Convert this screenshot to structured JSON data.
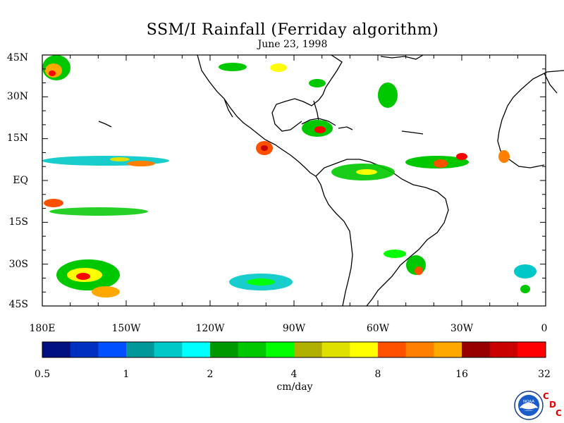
{
  "title": "SSM/I Rainfall (Ferriday algorithm)",
  "subtitle": "June 23, 1998",
  "lat_labels": [
    "45N",
    "30N",
    "15N",
    "EQ",
    "15S",
    "30S",
    "45S"
  ],
  "lon_labels": [
    "180E",
    "150W",
    "120W",
    "90W",
    "60W",
    "30W",
    "0"
  ],
  "colorbar": {
    "colors": [
      "#001080",
      "#0030c0",
      "#0050ff",
      "#009898",
      "#00c8c8",
      "#00ffff",
      "#009800",
      "#00c800",
      "#00ff00",
      "#b0b000",
      "#e0e000",
      "#ffff00",
      "#ff5000",
      "#ff8000",
      "#ffa800",
      "#980000",
      "#c80000",
      "#ff0000"
    ],
    "tick_labels": [
      "0.5",
      "1",
      "2",
      "4",
      "8",
      "16",
      "32"
    ],
    "units": "cm/day"
  },
  "logo": {
    "text": "NOAA",
    "letters": [
      "C",
      "D",
      "C"
    ],
    "icon": "noaa-logo-icon"
  }
}
